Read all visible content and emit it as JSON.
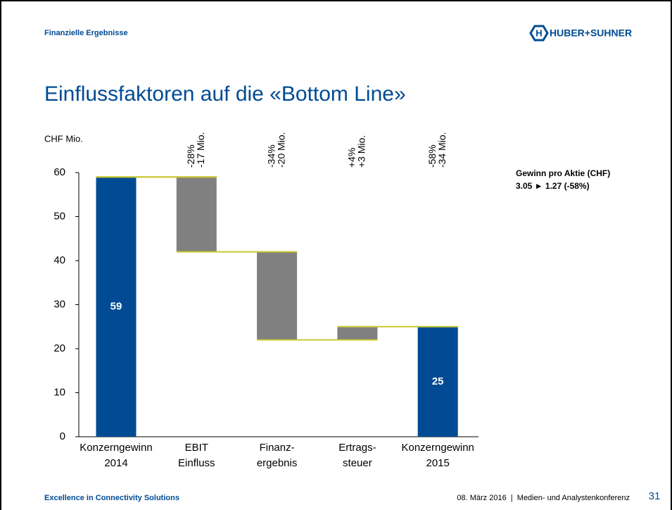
{
  "header": {
    "section": "Finanzielle Ergebnisse",
    "logo": "HUBER+SUHNER"
  },
  "note": {
    "title": "Gewinn pro Aktie (CHF)",
    "text": "3.05 ► 1.27 (-58%)"
  },
  "footer": {
    "left": "Excellence in Connectivity Solutions",
    "right": "08. März 2016  |  Medien- und Analystenkonferenz",
    "page": "31"
  },
  "chart_data": {
    "type": "waterfall",
    "title": "Einflussfaktoren auf die «Bottom Line»",
    "y_label": "CHF Mio.",
    "categories": [
      [
        "Konzerngewinn",
        "2014"
      ],
      [
        "EBIT",
        "Einfluss"
      ],
      [
        "Finanz-",
        "ergebnis"
      ],
      [
        "Ertrags-",
        "steuer"
      ],
      [
        "Konzerngewinn",
        "2015"
      ]
    ],
    "kinds": [
      "total",
      "delta",
      "delta",
      "delta",
      "total"
    ],
    "values": [
      59,
      -17,
      -20,
      3,
      25
    ],
    "value_labels": [
      "59",
      null,
      null,
      null,
      "25"
    ],
    "annotations": [
      null,
      [
        "-28%",
        "-17 Mio."
      ],
      [
        "-34%",
        "-20 Mio."
      ],
      [
        "+4%",
        "+3 Mio."
      ],
      [
        "-58%",
        "-34 Mio."
      ]
    ],
    "colors": {
      "total": "#004b93",
      "delta": "#808080",
      "connector": "#c8c832"
    },
    "ylim": [
      0,
      60
    ],
    "yticks": [
      0,
      10,
      20,
      30,
      40,
      50,
      60
    ]
  }
}
